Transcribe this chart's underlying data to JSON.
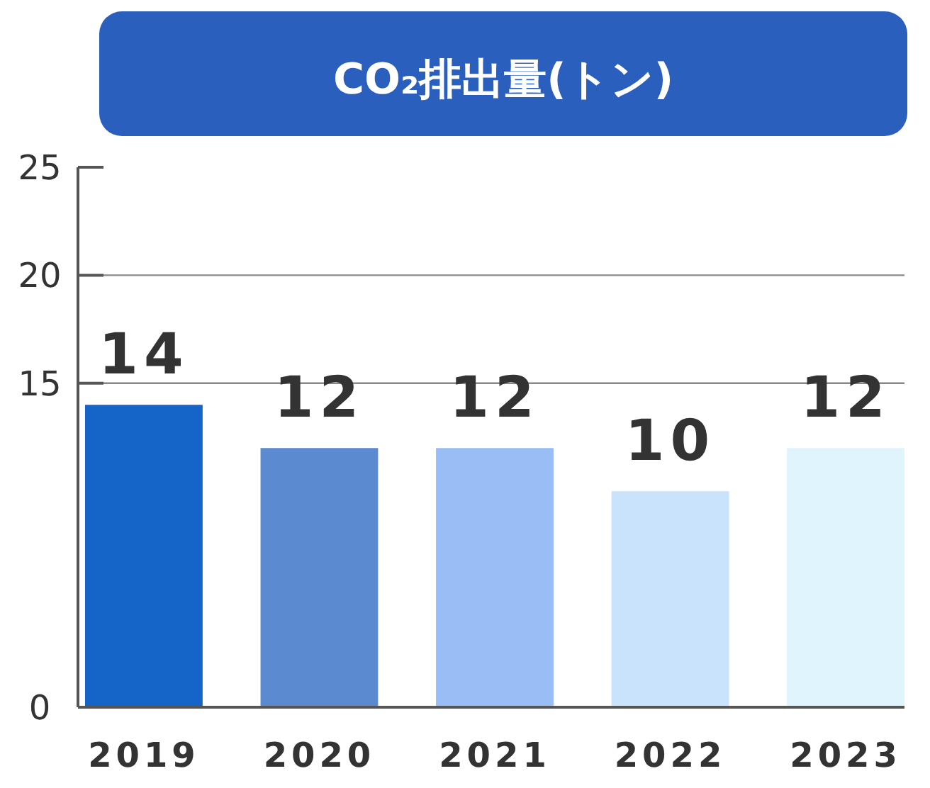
{
  "chart_data": {
    "type": "bar",
    "title": "CO₂排出量(トン)",
    "categories": [
      "2019",
      "2020",
      "2021",
      "2022",
      "2023"
    ],
    "values": [
      14,
      12,
      12,
      10,
      12
    ],
    "colors": [
      "#1565c8",
      "#5b8ad0",
      "#99bdf5",
      "#c8e3fb",
      "#e0f4fd"
    ],
    "ylim": [
      0,
      25
    ],
    "yticks": [
      0,
      15,
      20,
      25
    ],
    "grid": "y",
    "data_labels": true
  }
}
